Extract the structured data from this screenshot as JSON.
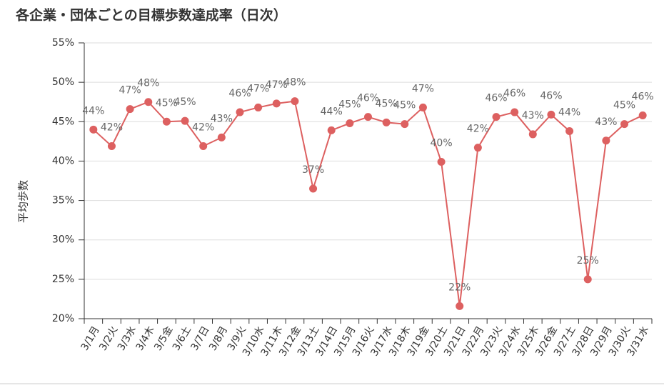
{
  "chart_data": {
    "type": "line",
    "title": "各企業・団体ごとの目標歩数達成率（日次）",
    "y_label": "平均歩数",
    "color": "#dd6060",
    "grid": true,
    "categories": [
      "3/1月",
      "3/2火",
      "3/3水",
      "3/4木",
      "3/5金",
      "3/6土",
      "3/7日",
      "3/8月",
      "3/9火",
      "3/10水",
      "3/11木",
      "3/12金",
      "3/13土",
      "3/14日",
      "3/15月",
      "3/16火",
      "3/17水",
      "3/18木",
      "3/19金",
      "3/20土",
      "3/21日",
      "3/22月",
      "3/23火",
      "3/24水",
      "3/25木",
      "3/26金",
      "3/27土",
      "3/28日",
      "3/29月",
      "3/30火",
      "3/31水"
    ],
    "values": [
      44.0,
      41.9,
      46.6,
      47.5,
      45.0,
      45.1,
      41.9,
      43.0,
      46.2,
      46.8,
      47.3,
      47.6,
      36.5,
      43.9,
      44.8,
      45.6,
      44.9,
      44.7,
      46.8,
      39.9,
      21.6,
      41.7,
      45.6,
      46.2,
      43.4,
      45.9,
      43.8,
      25.0,
      42.6,
      44.7,
      45.8
    ],
    "value_labels": [
      "44%",
      "42%",
      "47%",
      "48%",
      "45%",
      "45%",
      "42%",
      "43%",
      "46%",
      "47%",
      "47%",
      "48%",
      "37%",
      "44%",
      "45%",
      "46%",
      "45%",
      "45%",
      "47%",
      "40%",
      "22%",
      "42%",
      "46%",
      "46%",
      "43%",
      "46%",
      "44%",
      "25%",
      "43%",
      "45%",
      "46%"
    ],
    "ylim": [
      20,
      55
    ],
    "yticks": [
      {
        "value": 20,
        "label": "20%"
      },
      {
        "value": 25,
        "label": "25%"
      },
      {
        "value": 30,
        "label": "30%"
      },
      {
        "value": 35,
        "label": "35%"
      },
      {
        "value": 40,
        "label": "40%"
      },
      {
        "value": 45,
        "label": "45%"
      },
      {
        "value": 50,
        "label": "50%"
      },
      {
        "value": 55,
        "label": "55%"
      }
    ]
  }
}
